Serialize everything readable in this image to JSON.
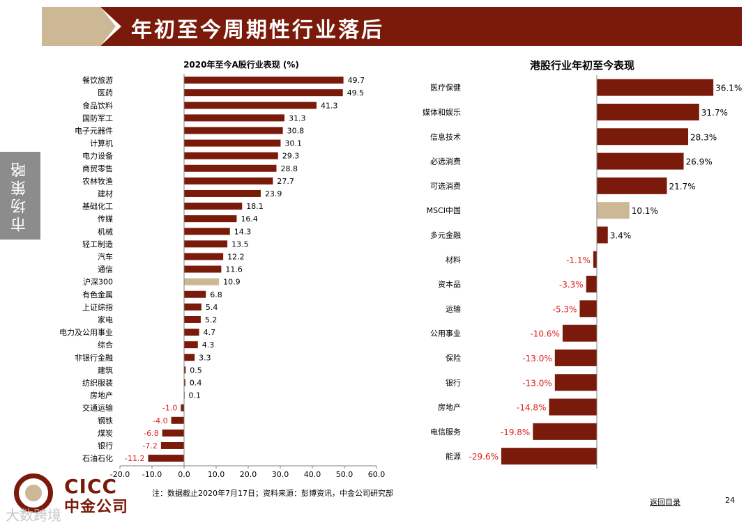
{
  "header": {
    "title": "年初至今周期性行业落后"
  },
  "sidebar": {
    "label": "市场策略"
  },
  "colors": {
    "bar": "#7a1a0a",
    "highlight": "#cdb896",
    "negative_label": "#e02020"
  },
  "chart_data": [
    {
      "type": "bar",
      "orientation": "horizontal",
      "title": "2020年至今A股行业表现 (%)",
      "categories": [
        "餐饮旅游",
        "医药",
        "食品饮料",
        "国防军工",
        "电子元器件",
        "计算机",
        "电力设备",
        "商贸零售",
        "农林牧渔",
        "建材",
        "基础化工",
        "传媒",
        "机械",
        "轻工制造",
        "汽车",
        "通信",
        "沪深300",
        "有色金属",
        "上证综指",
        "家电",
        "电力及公用事业",
        "综合",
        "非银行金融",
        "建筑",
        "纺织服装",
        "房地产",
        "交通运输",
        "钢铁",
        "煤炭",
        "银行",
        "石油石化"
      ],
      "values": [
        49.7,
        49.5,
        41.3,
        31.3,
        30.8,
        30.1,
        29.3,
        28.8,
        27.7,
        23.9,
        18.1,
        16.4,
        14.3,
        13.5,
        12.2,
        11.6,
        10.9,
        6.8,
        5.4,
        5.2,
        4.7,
        4.3,
        3.3,
        0.5,
        0.4,
        0.1,
        -1.0,
        -4.0,
        -6.8,
        -7.2,
        -11.2
      ],
      "labels": [
        "49.7",
        "49.5",
        "41.3",
        "31.3",
        "30.8",
        "30.1",
        "29.3",
        "28.8",
        "27.7",
        "23.9",
        "18.1",
        "16.4",
        "14.3",
        "13.5",
        "12.2",
        "11.6",
        "10.9",
        "6.8",
        "5.4",
        "5.2",
        "4.7",
        "4.3",
        "3.3",
        "0.5",
        "0.4",
        "0.1",
        "-1.0",
        "-4.0",
        "-6.8",
        "-7.2",
        "-11.2"
      ],
      "highlight": "沪深300",
      "xlim": [
        -20,
        60
      ],
      "xticks": [
        "-20.0",
        "-10.0",
        "0.0",
        "10.0",
        "20.0",
        "30.0",
        "40.0",
        "50.0",
        "60.0"
      ]
    },
    {
      "type": "bar",
      "orientation": "horizontal",
      "title": "港股行业年初至今表现",
      "categories": [
        "医疗保健",
        "媒体和娱乐",
        "信息技术",
        "必选消费",
        "可选消费",
        "MSCI中国",
        "多元金融",
        "材料",
        "资本品",
        "运输",
        "公用事业",
        "保险",
        "银行",
        "房地产",
        "电信服务",
        "能源"
      ],
      "values": [
        36.1,
        31.7,
        28.3,
        26.9,
        21.7,
        10.1,
        3.4,
        -1.1,
        -3.3,
        -5.3,
        -10.6,
        -13.0,
        -13.0,
        -14.8,
        -19.8,
        -29.6
      ],
      "labels": [
        "36.1%",
        "31.7%",
        "28.3%",
        "26.9%",
        "21.7%",
        "10.1%",
        "3.4%",
        "-1.1%",
        "-3.3%",
        "-5.3%",
        "-10.6%",
        "-13.0%",
        "-13.0%",
        "-14.8%",
        "-19.8%",
        "-29.6%"
      ],
      "highlight": "MSCI中国"
    }
  ],
  "footer": {
    "note": "注：数据截止2020年7月17日；资料来源：彭博资讯，中金公司研究部",
    "back_link": "返回目录",
    "page_number": "24"
  },
  "logo": {
    "en": "CICC",
    "cn": "中金公司"
  },
  "watermark": "大数跨境"
}
